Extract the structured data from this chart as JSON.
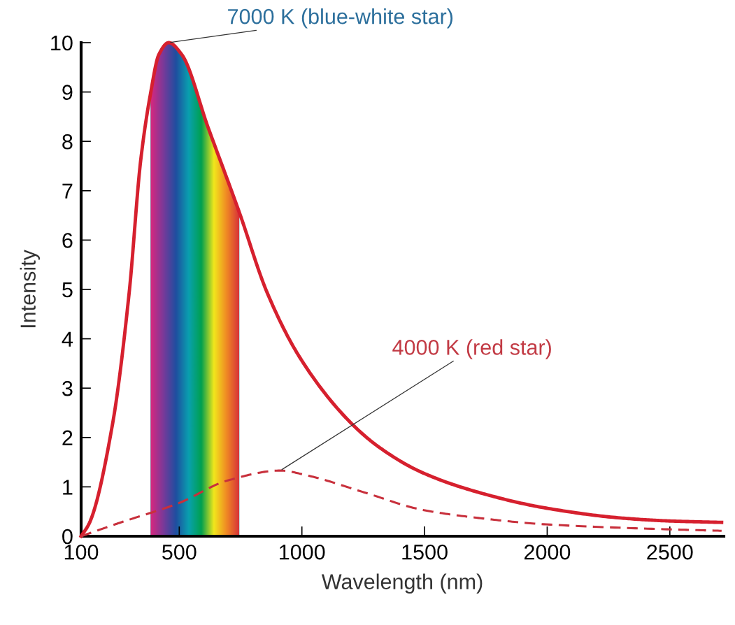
{
  "chart_data": {
    "type": "line",
    "xlabel": "Wavelength (nm)",
    "ylabel": "Intensity",
    "series": [
      {
        "color": "#d6202e",
        "line_style": "solid",
        "x": [
          100,
          134,
          228,
          296,
          343,
          383,
          417,
          457,
          510,
          617,
          745,
          858,
          993,
          1191,
          1313,
          1486,
          1719,
          1995,
          2299,
          2491,
          2711
        ],
        "values": [
          0,
          0.27,
          2.27,
          4.94,
          7.62,
          8.97,
          9.76,
          10.0,
          9.76,
          8.29,
          6.56,
          4.94,
          3.61,
          2.34,
          1.81,
          1.3,
          0.89,
          0.57,
          0.37,
          0.31,
          0.28
        ]
      },
      {
        "color": "#c8303c",
        "line_style": "dashed",
        "x": [
          100,
          256,
          498,
          698,
          912,
          1023,
          1253,
          1486,
          1719,
          1995,
          2491,
          2711
        ],
        "values": [
          0,
          0.27,
          0.67,
          1.13,
          1.33,
          1.23,
          0.89,
          0.54,
          0.37,
          0.24,
          0.14,
          0.11
        ]
      }
    ],
    "bands": [
      {
        "axis": "x",
        "from": 383,
        "to": 745
      }
    ],
    "annotations": [
      {
        "text": "7000 K (blue-white star)",
        "x": 457,
        "y": 10.0
      },
      {
        "text": "4000 K (red star)",
        "x": 912,
        "y": 1.33
      }
    ],
    "xlim": [
      100,
      2720
    ],
    "ylim": [
      0,
      10
    ],
    "xticks": [
      100,
      500,
      1000,
      1500,
      2000,
      2500
    ],
    "yticks": [
      0,
      1,
      2,
      3,
      4,
      5,
      6,
      7,
      8,
      9,
      10
    ],
    "grid": false,
    "legend": false
  }
}
